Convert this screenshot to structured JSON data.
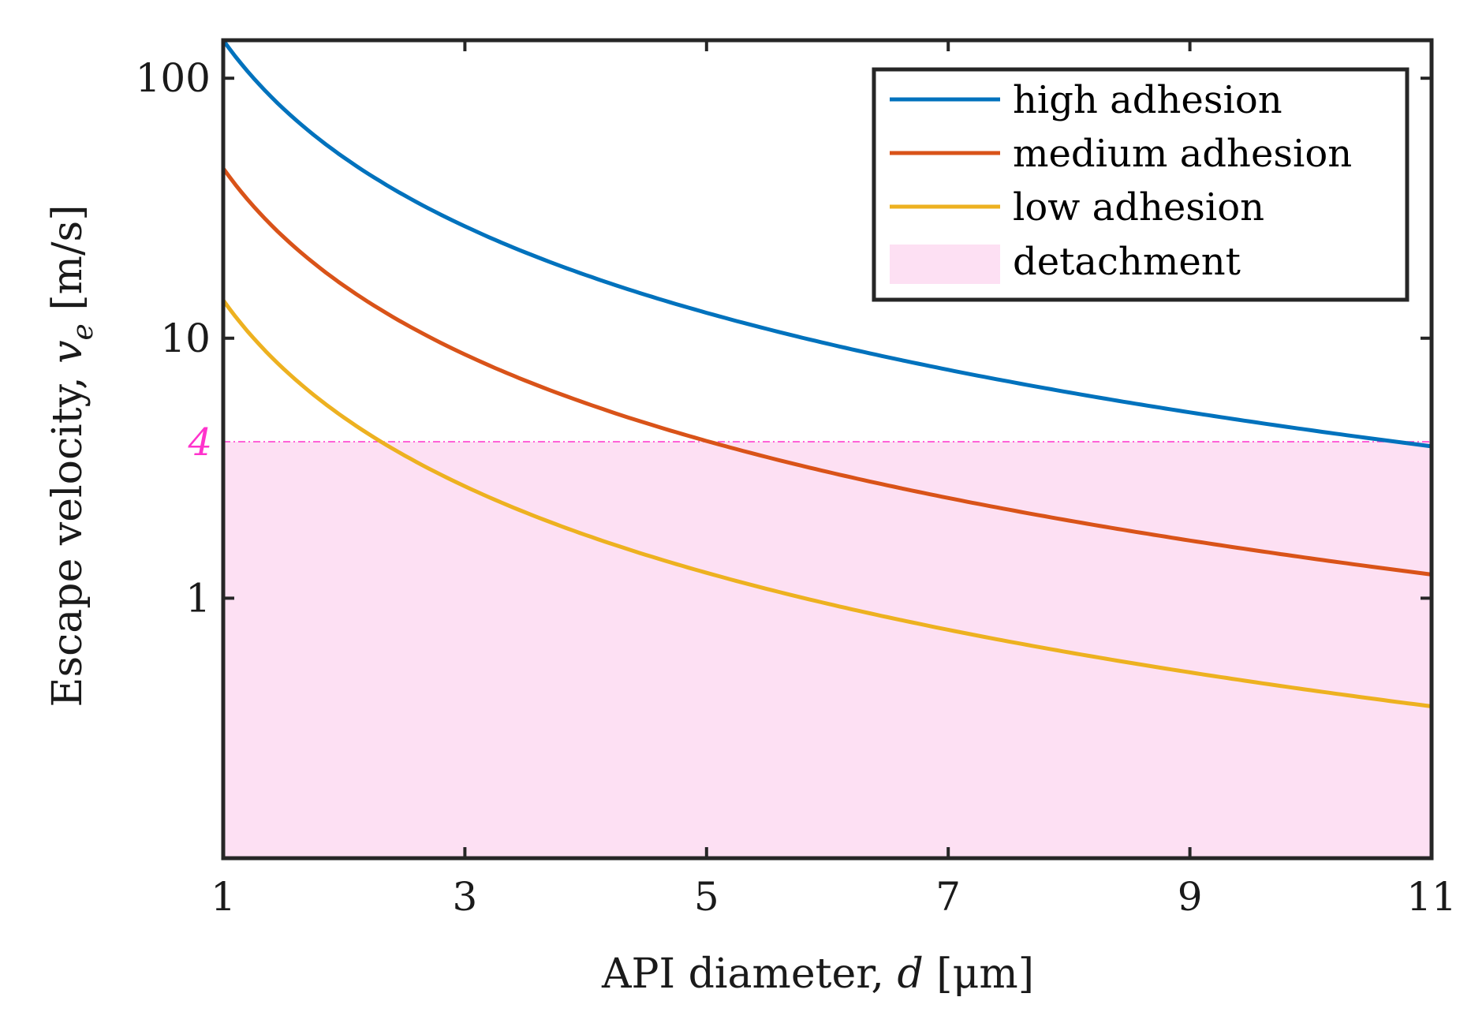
{
  "chart_data": {
    "type": "line",
    "title": "",
    "xlabel": {
      "prefix": "API diameter, ",
      "var": "d",
      "units": " [μm]"
    },
    "ylabel": {
      "prefix": "Escape velocity, ",
      "var": "v",
      "sub": "e",
      "units": " [m/s]"
    },
    "xlim": [
      1,
      11
    ],
    "ylim": [
      0.1,
      140
    ],
    "yscale": "log",
    "x_ticks": [
      1,
      3,
      5,
      7,
      9,
      11
    ],
    "y_ticks": [
      1,
      10,
      100
    ],
    "y_tick_labels": [
      "1",
      "10",
      "100"
    ],
    "x_tick_labels": [
      "1",
      "3",
      "5",
      "7",
      "9",
      "11"
    ],
    "series": [
      {
        "name": "high adhesion",
        "color": "#0072BD",
        "v_at_d1": 140,
        "exponent": -1.5
      },
      {
        "name": "medium adhesion",
        "color": "#D95319",
        "v_at_d1": 45,
        "exponent": -1.5
      },
      {
        "name": "low adhesion",
        "color": "#EDB120",
        "v_at_d1": 14,
        "exponent": -1.5
      }
    ],
    "threshold": {
      "value": 4,
      "label": "4",
      "color": "#FF33CC"
    },
    "shaded_region": {
      "name": "detachment",
      "from": 0.1,
      "to": 4,
      "color": "#FDE0F3"
    },
    "legend": {
      "placement": "top-right",
      "entries": [
        "high adhesion",
        "medium adhesion",
        "low adhesion",
        "detachment"
      ]
    }
  }
}
